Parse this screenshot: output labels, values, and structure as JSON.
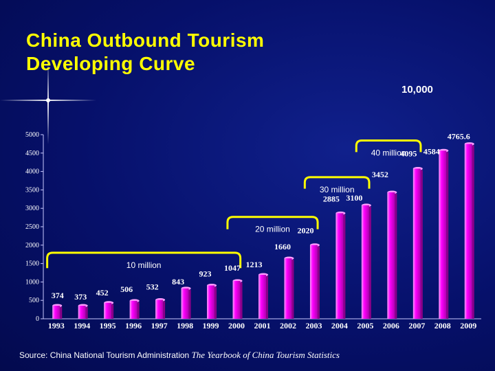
{
  "title_line1": "China Outbound Tourism",
  "title_line2": "Developing Curve",
  "milestone_label": "10,000",
  "colors": {
    "title": "#ffff00",
    "bar": "#ff00ff",
    "bar_highlight": "#ff9cff",
    "bracket": "#ffff00",
    "background": "#06106a"
  },
  "chart_data": {
    "type": "bar",
    "title": "China Outbound Tourism Developing Curve",
    "xlabel": "",
    "ylabel": "",
    "ylim": [
      0,
      5000
    ],
    "yticks": [
      0,
      500,
      1000,
      1500,
      2000,
      2500,
      3000,
      3500,
      4000,
      4500,
      5000
    ],
    "categories": [
      "1993",
      "1994",
      "1995",
      "1996",
      "1997",
      "1998",
      "1999",
      "2000",
      "2001",
      "2002",
      "2003",
      "2004",
      "2005",
      "2006",
      "2007",
      "2008",
      "2009"
    ],
    "values": [
      374,
      373,
      452,
      506,
      532,
      843,
      923,
      1047,
      1213,
      1660,
      2020,
      2885,
      3100,
      3452,
      4095,
      4584,
      4765.6
    ],
    "value_labels": [
      "374",
      "373",
      "452",
      "506",
      "532",
      "843",
      "923",
      "1047",
      "1213",
      "1660",
      "2020",
      "2885",
      "3100",
      "3452",
      "4095",
      "4584",
      "4765.6"
    ],
    "annotations": [
      {
        "text": "10 million",
        "from_index": 0,
        "to_index": 7
      },
      {
        "text": "20 million",
        "from_index": 7,
        "to_index": 10
      },
      {
        "text": "30 million",
        "from_index": 10,
        "to_index": 12
      },
      {
        "text": "40 million",
        "from_index": 12,
        "to_index": 14
      }
    ]
  },
  "source": {
    "prefix": "Source: China National Tourism Administration ",
    "publication": "The Yearbook of China Tourism Statistics"
  }
}
